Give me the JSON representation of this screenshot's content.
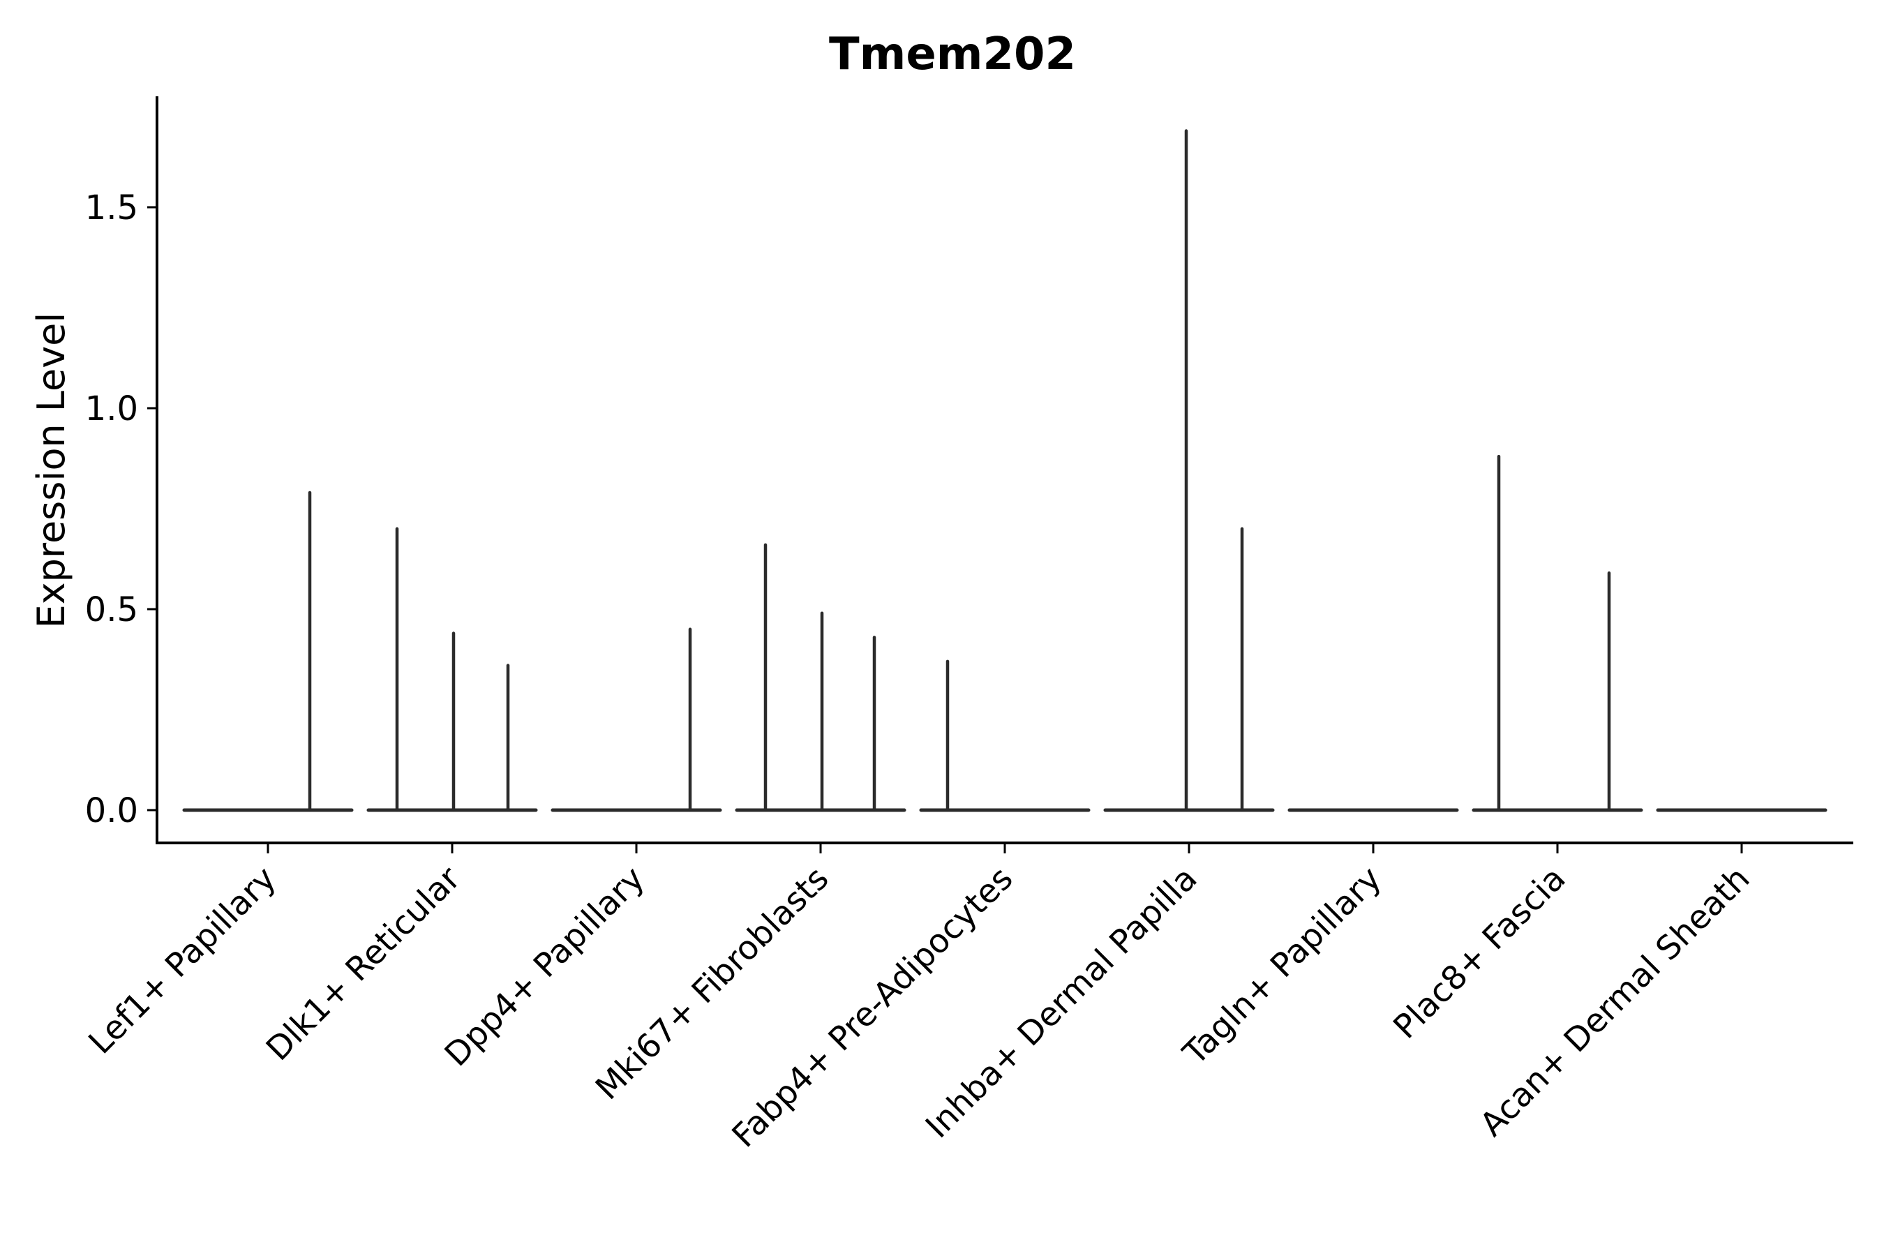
{
  "chart_data": {
    "type": "violin",
    "title": "Tmem202",
    "ylabel": "Expression Level",
    "xlabel": "",
    "legend_position": "none",
    "grid": false,
    "ylim": [
      -0.08,
      1.77
    ],
    "yticks": [
      {
        "label": "0.0",
        "value": 0.0
      },
      {
        "label": "0.5",
        "value": 0.5
      },
      {
        "label": "1.0",
        "value": 1.0
      },
      {
        "label": "1.5",
        "value": 1.5
      }
    ],
    "categories": [
      "Lef1+ Papillary",
      "Dlk1+ Reticular",
      "Dpp4+ Papillary",
      "Mki67+ Fibroblasts",
      "Fabp4+ Pre-Adipocytes",
      "Inhba+ Dermal Papilla",
      "Tagln+ Papillary",
      "Plac8+ Fascia",
      "Acan+ Dermal Sheath"
    ],
    "violins": [
      {
        "category": "Lef1+ Papillary",
        "zero_line": true,
        "spikes": [
          {
            "dx": 60,
            "max": 0.79
          }
        ]
      },
      {
        "category": "Dlk1+ Reticular",
        "zero_line": true,
        "spikes": [
          {
            "dx": -79,
            "max": 0.7
          },
          {
            "dx": 2,
            "max": 0.44
          },
          {
            "dx": 80,
            "max": 0.36
          }
        ]
      },
      {
        "category": "Dpp4+ Papillary",
        "zero_line": true,
        "spikes": [
          {
            "dx": 77,
            "max": 0.45
          }
        ]
      },
      {
        "category": "Mki67+ Fibroblasts",
        "zero_line": true,
        "spikes": [
          {
            "dx": -79,
            "max": 0.66
          },
          {
            "dx": 2,
            "max": 0.49
          },
          {
            "dx": 77,
            "max": 0.43
          }
        ]
      },
      {
        "category": "Fabp4+ Pre-Adipocytes",
        "zero_line": true,
        "spikes": [
          {
            "dx": -82,
            "max": 0.37
          }
        ]
      },
      {
        "category": "Inhba+ Dermal Papilla",
        "zero_line": true,
        "spikes": [
          {
            "dx": -4,
            "max": 1.69
          },
          {
            "dx": 76,
            "max": 0.7
          }
        ]
      },
      {
        "category": "Tagln+ Papillary",
        "zero_line": true,
        "spikes": []
      },
      {
        "category": "Plac8+ Fascia",
        "zero_line": true,
        "spikes": [
          {
            "dx": -84,
            "max": 0.88
          },
          {
            "dx": 74,
            "max": 0.59
          }
        ]
      },
      {
        "category": "Acan+ Dermal Sheath",
        "zero_line": true,
        "spikes": []
      }
    ],
    "colors": {
      "violin_line": "#2b2b2b",
      "axis": "#000000",
      "text": "#000000",
      "background": "#ffffff"
    }
  }
}
